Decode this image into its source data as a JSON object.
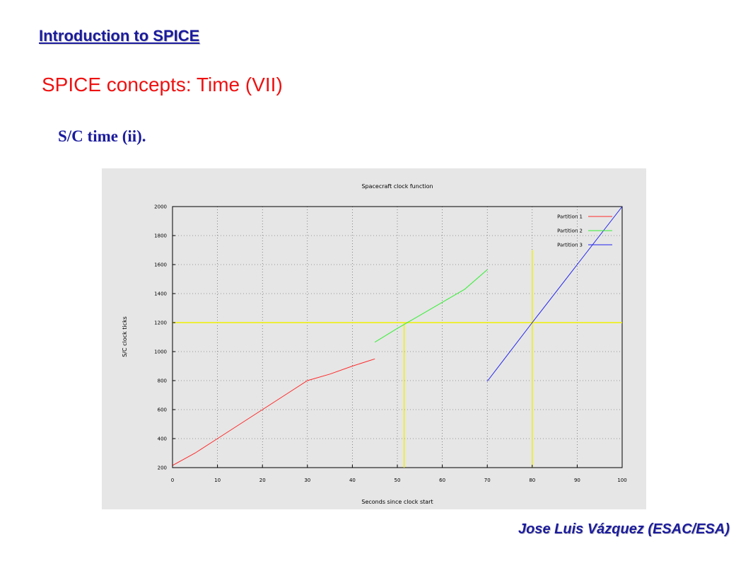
{
  "slide": {
    "course_title": "Introduction to SPICE",
    "title": "SPICE concepts: Time (VII)",
    "subtitle": "S/C time (ii).",
    "author": "Jose Luis Vázquez (ESAC/ESA)"
  },
  "chart_data": {
    "type": "line",
    "title": "Spacecraft clock function",
    "xlabel": "Seconds since clock start",
    "ylabel": "S/C clock ticks",
    "xlim": [
      0,
      100
    ],
    "ylim": [
      200,
      2000
    ],
    "xticks": [
      0,
      10,
      20,
      30,
      40,
      50,
      60,
      70,
      80,
      90,
      100
    ],
    "yticks": [
      200,
      400,
      600,
      800,
      1000,
      1200,
      1400,
      1600,
      1800,
      2000
    ],
    "grid": true,
    "legend_position": "top-right",
    "series": [
      {
        "name": "Partition 1",
        "color": "#ff2a2a",
        "points": [
          [
            0,
            215
          ],
          [
            5,
            300
          ],
          [
            10,
            400
          ],
          [
            15,
            500
          ],
          [
            20,
            600
          ],
          [
            25,
            700
          ],
          [
            30,
            800
          ],
          [
            35,
            845
          ],
          [
            40,
            900
          ],
          [
            45,
            950
          ]
        ]
      },
      {
        "name": "Partition 2",
        "color": "#33ee33",
        "points": [
          [
            45,
            1065
          ],
          [
            50,
            1160
          ],
          [
            55,
            1250
          ],
          [
            60,
            1340
          ],
          [
            65,
            1430
          ],
          [
            70,
            1565
          ]
        ]
      },
      {
        "name": "Partition 3",
        "color": "#2222ee",
        "points": [
          [
            70,
            795
          ],
          [
            80,
            1200
          ],
          [
            90,
            1600
          ],
          [
            100,
            2000
          ]
        ]
      }
    ],
    "annotations": {
      "color": "#f0f000",
      "horizontal_line_y": 1200,
      "horizontal_line_x_range": [
        0,
        100
      ],
      "vertical_lines": [
        {
          "x": 51.5,
          "y_range": [
            200,
            1200
          ]
        },
        {
          "x": 80,
          "y_range": [
            200,
            1700
          ]
        }
      ]
    }
  }
}
